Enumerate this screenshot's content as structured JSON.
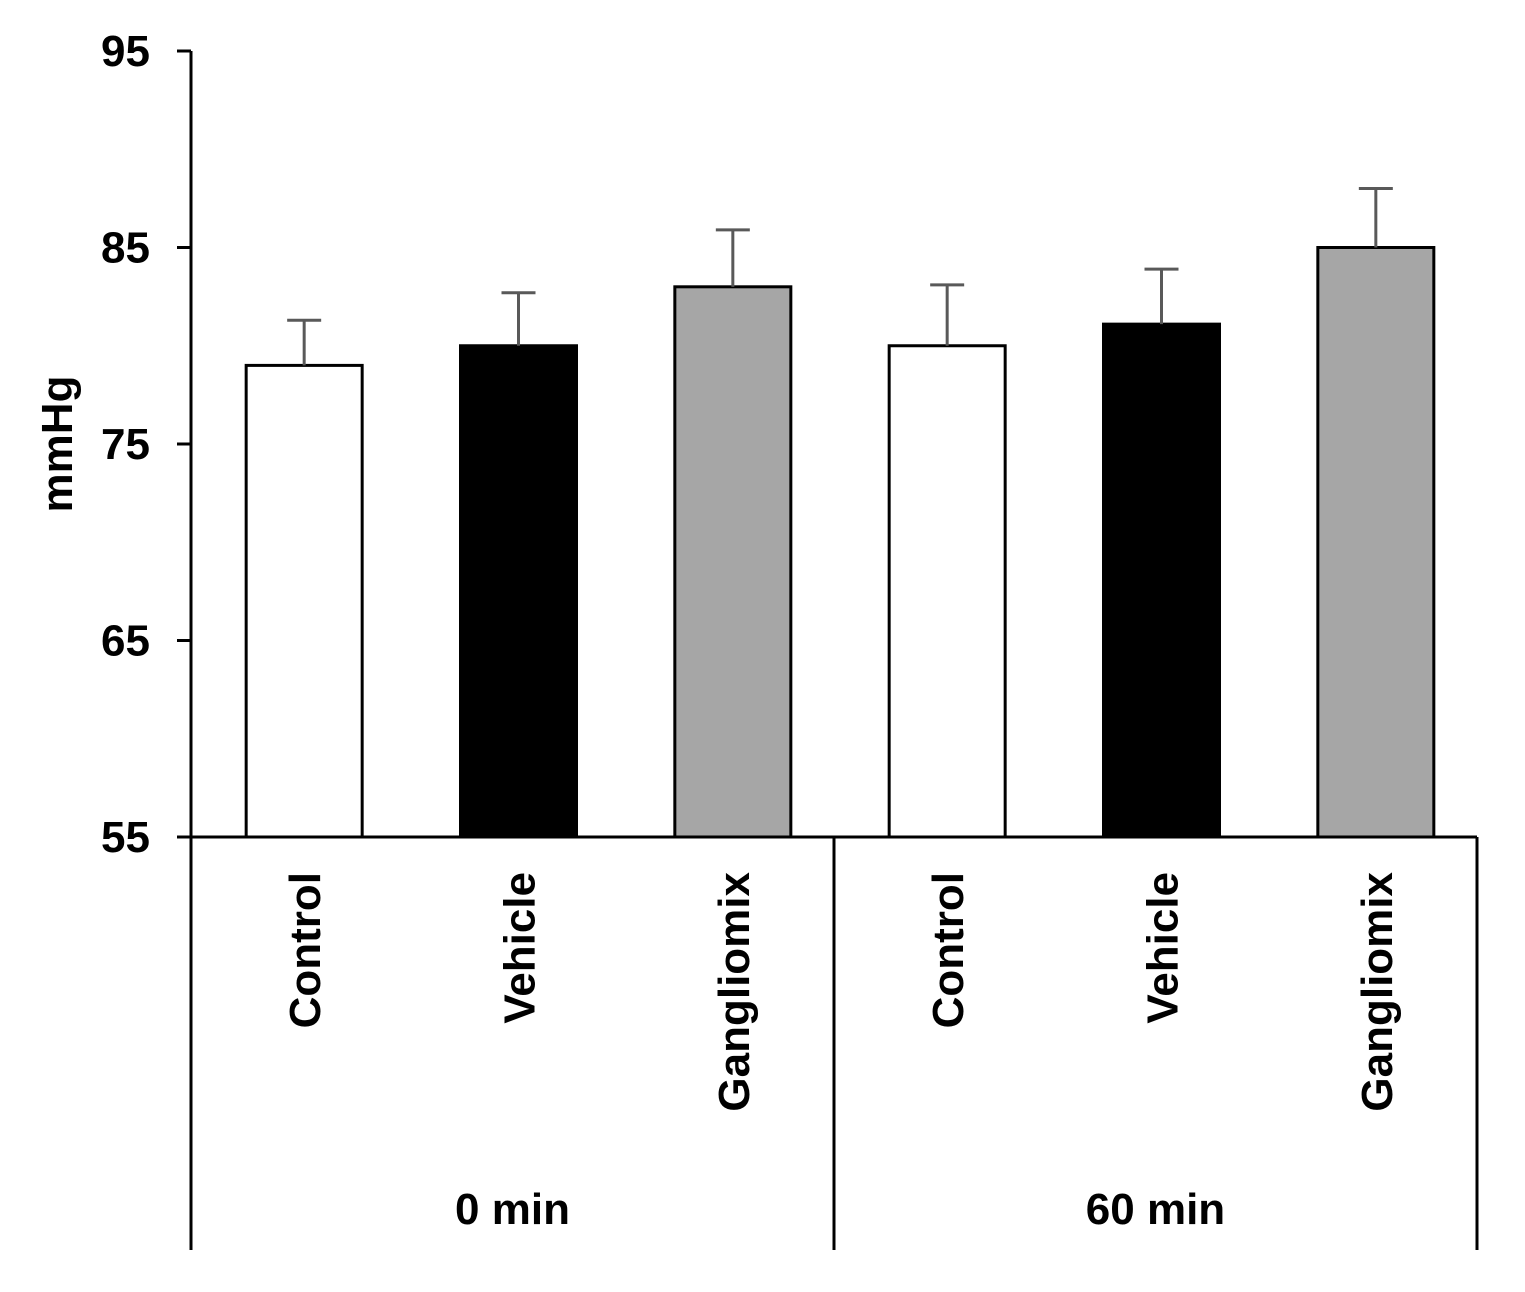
{
  "chart_data": {
    "type": "bar",
    "title": "",
    "xlabel": "",
    "ylabel": "mmHg",
    "ylim": [
      55,
      95
    ],
    "yticks": [
      55,
      65,
      75,
      85,
      95
    ],
    "groups": [
      {
        "label": "0 min",
        "bars": [
          {
            "category": "Control",
            "value": 79.0,
            "error": 2.3,
            "color": "#ffffff"
          },
          {
            "category": "Vehicle",
            "value": 80.0,
            "error": 2.7,
            "color": "#000000"
          },
          {
            "category": "Gangliomix",
            "value": 83.0,
            "error": 2.9,
            "color": "#a6a6a6"
          }
        ]
      },
      {
        "label": "60 min",
        "bars": [
          {
            "category": "Control",
            "value": 80.0,
            "error": 3.1,
            "color": "#ffffff"
          },
          {
            "category": "Vehicle",
            "value": 81.1,
            "error": 2.8,
            "color": "#000000"
          },
          {
            "category": "Gangliomix",
            "value": 85.0,
            "error": 3.0,
            "color": "#a6a6a6"
          }
        ]
      }
    ],
    "colors": {
      "axis": "#000000",
      "error_bar": "#595959"
    }
  }
}
